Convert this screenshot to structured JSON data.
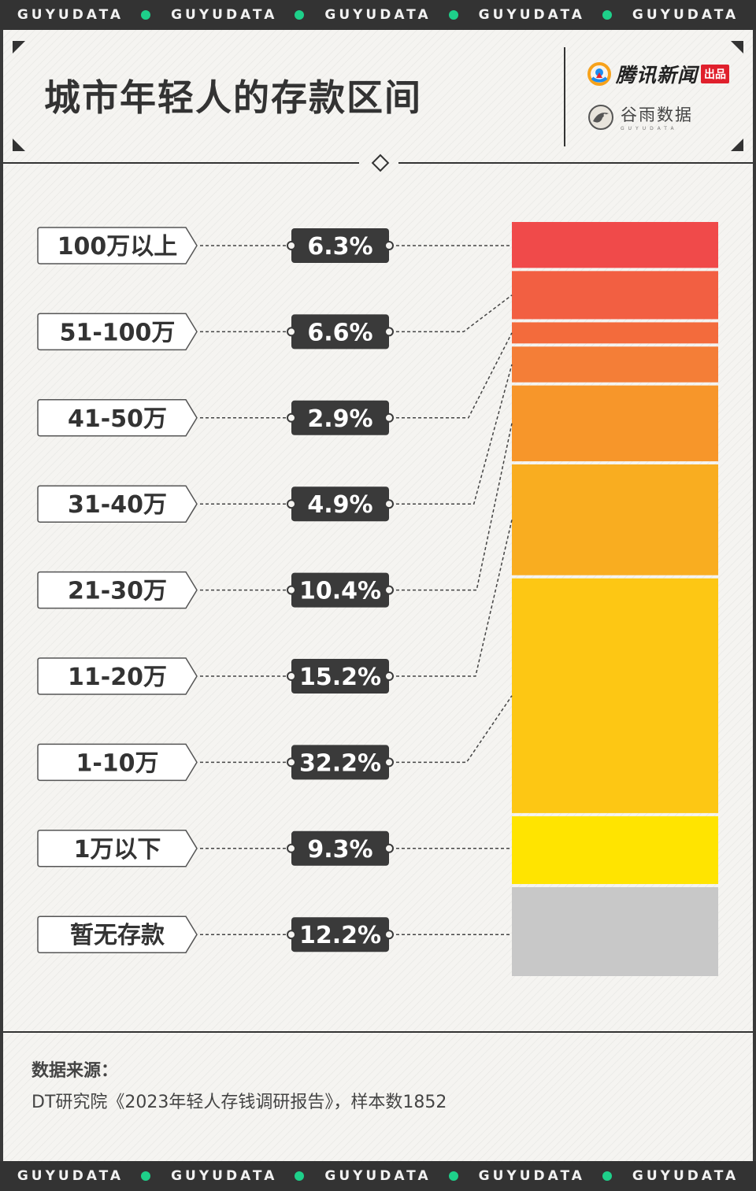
{
  "band": {
    "text": "GUYUDATA",
    "dot_color": "#1ed08a"
  },
  "header": {
    "title": "城市年轻人的存款区间",
    "logo_tencent": "腾讯新闻",
    "logo_tencent_tag": "出品",
    "logo_guyu": "谷雨数据",
    "logo_guyu_sub": "GUYUDATA"
  },
  "chart_data": {
    "type": "bar",
    "stacked": true,
    "categories": [
      "100万以上",
      "51-100万",
      "41-50万",
      "31-40万",
      "21-30万",
      "11-20万",
      "1-10万",
      "1万以下",
      "暂无存款"
    ],
    "values": [
      6.3,
      6.6,
      2.9,
      4.9,
      10.4,
      15.2,
      32.2,
      9.3,
      12.2
    ],
    "value_labels": [
      "6.3%",
      "6.6%",
      "2.9%",
      "4.9%",
      "10.4%",
      "15.2%",
      "32.2%",
      "9.3%",
      "12.2%"
    ],
    "colors": [
      "#f04a4a",
      "#f25f42",
      "#f36b3c",
      "#f47e37",
      "#f7962a",
      "#f9ad20",
      "#fdc714",
      "#ffe400",
      "#c8c8c8"
    ],
    "unit": "%",
    "title": "城市年轻人的存款区间"
  },
  "footer": {
    "source_label": "数据来源：",
    "source_text": "DT研究院《2023年轻人存钱调研报告》，样本数1852"
  }
}
